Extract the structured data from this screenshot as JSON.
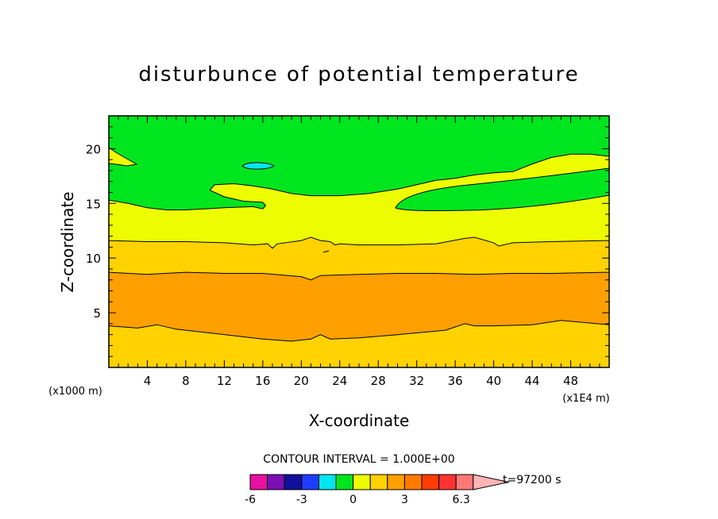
{
  "chart_data": {
    "type": "heatmap",
    "title": "disturbunce of potential temperature",
    "xlabel": "X-coordinate",
    "ylabel": "Z-coordinate",
    "x_unit": "(x1E4 m)",
    "y_unit": "(x1000 m)",
    "xlim": [
      0,
      52
    ],
    "ylim": [
      0,
      23
    ],
    "x_ticks": [
      4,
      8,
      12,
      16,
      20,
      24,
      28,
      32,
      36,
      40,
      44,
      48
    ],
    "y_ticks": [
      5,
      10,
      15,
      20
    ],
    "contour_interval": "CONTOUR INTERVAL = 1.000E+00",
    "time_label": "t=97200 s",
    "colorbar": {
      "levels": [
        -6,
        -5,
        -4,
        -3,
        -2,
        -1,
        0,
        1,
        2,
        3,
        4,
        5,
        6
      ],
      "colors": [
        "#e8109e",
        "#7a0fb4",
        "#10109a",
        "#1e3cff",
        "#00e6f0",
        "#00e61e",
        "#eefc00",
        "#ffd200",
        "#ffa000",
        "#ff7a00",
        "#ff3c00",
        "#ff3232",
        "#ff7878",
        "#ffb4b4"
      ],
      "tick_labels": [
        "-6",
        "-3",
        "0",
        "3",
        "6.3"
      ],
      "tick_values": [
        -6,
        -3,
        0,
        3,
        6.3
      ]
    },
    "bands": [
      {
        "from": 0,
        "to": 1,
        "color": "#ffd200",
        "upper": [
          [
            0,
            3.8
          ],
          [
            3,
            3.6
          ],
          [
            5,
            3.9
          ],
          [
            7,
            3.5
          ],
          [
            10,
            3.2
          ],
          [
            13,
            2.9
          ],
          [
            16,
            2.6
          ],
          [
            19,
            2.4
          ],
          [
            21,
            2.6
          ],
          [
            22,
            3.0
          ],
          [
            23,
            2.6
          ],
          [
            26,
            2.7
          ],
          [
            30,
            3.0
          ],
          [
            35,
            3.4
          ],
          [
            37,
            4.0
          ],
          [
            38,
            3.8
          ],
          [
            40,
            3.8
          ],
          [
            44,
            3.9
          ],
          [
            47,
            4.3
          ],
          [
            52,
            3.9
          ]
        ]
      },
      {
        "from": 1,
        "to": 2,
        "color": "#ffa000",
        "upper": [
          [
            0,
            8.7
          ],
          [
            4,
            8.5
          ],
          [
            8,
            8.7
          ],
          [
            12,
            8.6
          ],
          [
            16,
            8.6
          ],
          [
            20,
            8.3
          ],
          [
            21,
            8.0
          ],
          [
            22,
            8.4
          ],
          [
            26,
            8.5
          ],
          [
            30,
            8.6
          ],
          [
            34,
            8.6
          ],
          [
            38,
            8.5
          ],
          [
            42,
            8.6
          ],
          [
            46,
            8.6
          ],
          [
            52,
            8.7
          ]
        ]
      },
      {
        "from": 0,
        "to": 1,
        "color": "#ffd200",
        "upper": [
          [
            0,
            11.6
          ],
          [
            4,
            11.5
          ],
          [
            8,
            11.5
          ],
          [
            12,
            11.4
          ],
          [
            15,
            11.2
          ],
          [
            16.5,
            11.3
          ],
          [
            17,
            10.9
          ],
          [
            17.5,
            11.3
          ],
          [
            20,
            11.6
          ],
          [
            21,
            11.9
          ],
          [
            22,
            11.6
          ],
          [
            23,
            11.5
          ],
          [
            23.5,
            11.2
          ],
          [
            24,
            11.3
          ],
          [
            26,
            11.2
          ],
          [
            30,
            11.2
          ],
          [
            34,
            11.3
          ],
          [
            37,
            11.8
          ],
          [
            38,
            11.9
          ],
          [
            40,
            11.4
          ],
          [
            40.5,
            11.1
          ],
          [
            42,
            11.4
          ],
          [
            46,
            11.5
          ],
          [
            52,
            11.6
          ]
        ]
      },
      {
        "from": -1,
        "to": 0,
        "color": "#eefc00",
        "upper": [
          [
            0,
            15.3
          ],
          [
            2,
            15.0
          ],
          [
            4,
            14.6
          ],
          [
            6,
            14.4
          ],
          [
            8,
            14.4
          ],
          [
            10,
            14.5
          ],
          [
            12,
            14.6
          ],
          [
            15,
            14.7
          ],
          [
            16,
            14.5
          ],
          [
            16.3,
            14.8
          ],
          [
            16,
            15.1
          ],
          [
            14,
            15.2
          ],
          [
            12,
            15.6
          ],
          [
            10.5,
            16.2
          ],
          [
            11,
            16.7
          ],
          [
            13,
            16.8
          ],
          [
            15,
            16.6
          ],
          [
            17,
            16.3
          ],
          [
            19,
            15.9
          ],
          [
            21,
            15.7
          ],
          [
            24,
            15.7
          ],
          [
            27,
            15.9
          ],
          [
            30,
            16.3
          ],
          [
            32,
            16.7
          ],
          [
            34,
            17.1
          ],
          [
            36,
            17.3
          ],
          [
            38,
            17.6
          ],
          [
            40,
            17.8
          ],
          [
            42,
            17.9
          ],
          [
            44,
            18.6
          ],
          [
            46,
            19.2
          ],
          [
            48,
            19.5
          ],
          [
            50,
            19.5
          ],
          [
            52,
            19.3
          ]
        ]
      }
    ]
  }
}
